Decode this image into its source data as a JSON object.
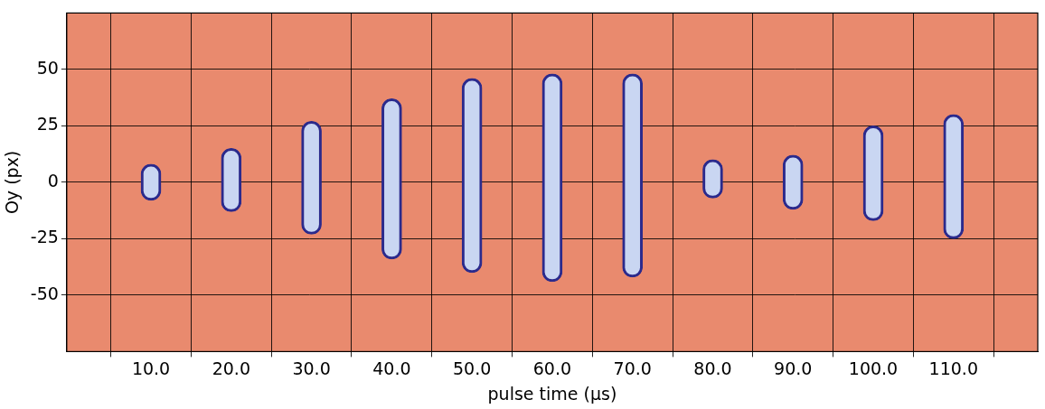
{
  "chart_data": {
    "type": "bar",
    "x_label": "pulse time (µs)",
    "y_label": "Oy (px)",
    "x": [
      10,
      20,
      30,
      40,
      50,
      60,
      70,
      80,
      90,
      100,
      110
    ],
    "values": [
      [
        -8,
        8
      ],
      [
        -13,
        15
      ],
      [
        -23,
        27
      ],
      [
        -34,
        37
      ],
      [
        -40,
        46
      ],
      [
        -44,
        48
      ],
      [
        -42,
        48
      ],
      [
        -7,
        10
      ],
      [
        -12,
        12
      ],
      [
        -17,
        25
      ],
      [
        -25,
        30
      ]
    ],
    "color": "#c9d6f2",
    "xlim": [
      5,
      115
    ],
    "xticks": [
      {
        "value": 10,
        "label": "10.0"
      },
      {
        "value": 20,
        "label": "20.0"
      },
      {
        "value": 30,
        "label": "30.0"
      },
      {
        "value": 40,
        "label": "40.0"
      },
      {
        "value": 50,
        "label": "50.0"
      },
      {
        "value": 60,
        "label": "60.0"
      },
      {
        "value": 70,
        "label": "70.0"
      },
      {
        "value": 80,
        "label": "80.0"
      },
      {
        "value": 90,
        "label": "90.0"
      },
      {
        "value": 100,
        "label": "100.0"
      },
      {
        "value": 110,
        "label": "110.0"
      }
    ],
    "ylim": [
      -75,
      75
    ],
    "yticks": [
      -50,
      -25,
      0,
      25,
      50
    ],
    "grid": true
  }
}
